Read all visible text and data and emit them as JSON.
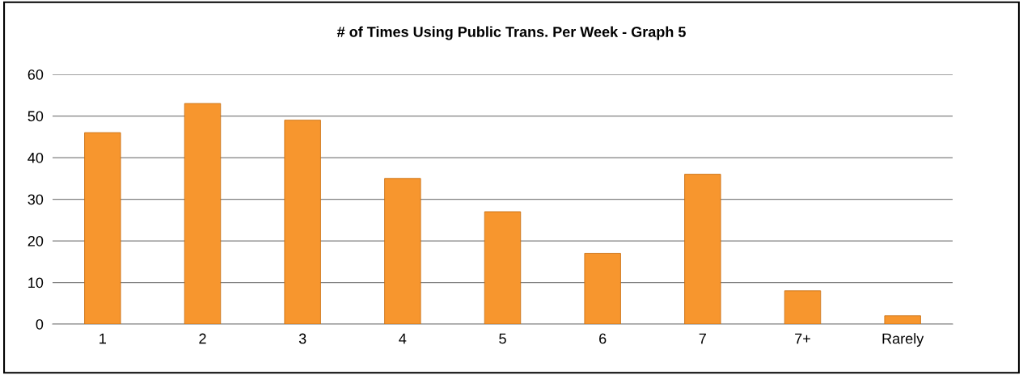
{
  "chart_data": {
    "type": "bar",
    "title": "# of Times Using Public Trans. Per Week - Graph 5",
    "categories": [
      "1",
      "2",
      "3",
      "4",
      "5",
      "6",
      "7",
      "7+",
      "Rarely"
    ],
    "values": [
      46,
      53,
      49,
      35,
      27,
      17,
      36,
      8,
      2
    ],
    "color": "#f7962e",
    "ylim": [
      0,
      60
    ],
    "yticks": [
      0,
      10,
      20,
      30,
      40,
      50,
      60
    ],
    "grid": "y"
  }
}
